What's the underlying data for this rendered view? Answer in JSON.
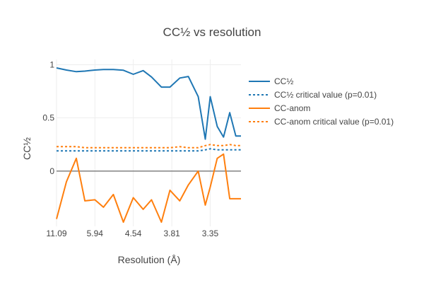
{
  "chart_data": {
    "type": "line",
    "title": "CC½ vs resolution",
    "xlabel": "Resolution (Å)",
    "ylabel": "CC½",
    "x_tick_labels": [
      "11.09",
      "5.94",
      "4.54",
      "3.81",
      "3.35"
    ],
    "x_tick_values": [
      0.0081,
      0.0283,
      0.0485,
      0.0688,
      0.089
    ],
    "y_ticks": [
      0,
      0.5,
      1
    ],
    "y_tick_labels": [
      "0",
      "0.5",
      "1"
    ],
    "xlim": [
      0.0081,
      0.1052
    ],
    "ylim": [
      -0.52,
      1.05
    ],
    "grid": true,
    "zero_line": true,
    "legend_position": "right",
    "x": [
      0.0081,
      0.0133,
      0.0185,
      0.023,
      0.0283,
      0.0328,
      0.038,
      0.0433,
      0.0485,
      0.0537,
      0.0581,
      0.0633,
      0.0678,
      0.073,
      0.0775,
      0.0827,
      0.0864,
      0.089,
      0.0927,
      0.096,
      0.0993,
      0.1025,
      0.1052
    ],
    "series": [
      {
        "name": "CC½",
        "color": "#1f77b4",
        "dash": "solid",
        "values": [
          0.97,
          0.95,
          0.935,
          0.94,
          0.95,
          0.955,
          0.955,
          0.948,
          0.91,
          0.945,
          0.885,
          0.79,
          0.79,
          0.875,
          0.89,
          0.7,
          0.3,
          0.7,
          0.42,
          0.32,
          0.55,
          0.33,
          0.33
        ]
      },
      {
        "name": "CC½ critical value (p=0.01)",
        "color": "#1f77b4",
        "dash": "dot",
        "values": [
          0.19,
          0.19,
          0.19,
          0.19,
          0.19,
          0.19,
          0.19,
          0.19,
          0.19,
          0.19,
          0.19,
          0.19,
          0.19,
          0.19,
          0.19,
          0.19,
          0.2,
          0.21,
          0.2,
          0.2,
          0.2,
          0.2,
          0.2
        ]
      },
      {
        "name": "CC-anom",
        "color": "#ff7f0e",
        "dash": "solid",
        "values": [
          -0.45,
          -0.1,
          0.12,
          -0.28,
          -0.27,
          -0.34,
          -0.22,
          -0.48,
          -0.25,
          -0.36,
          -0.27,
          -0.48,
          -0.18,
          -0.28,
          -0.13,
          0.0,
          -0.32,
          -0.15,
          0.12,
          0.16,
          -0.26,
          -0.26,
          -0.26
        ]
      },
      {
        "name": "CC-anom critical value (p=0.01)",
        "color": "#ff7f0e",
        "dash": "dot",
        "values": [
          0.23,
          0.23,
          0.23,
          0.22,
          0.22,
          0.22,
          0.22,
          0.22,
          0.22,
          0.22,
          0.22,
          0.22,
          0.22,
          0.23,
          0.22,
          0.22,
          0.24,
          0.25,
          0.24,
          0.24,
          0.25,
          0.24,
          0.24
        ]
      }
    ]
  }
}
